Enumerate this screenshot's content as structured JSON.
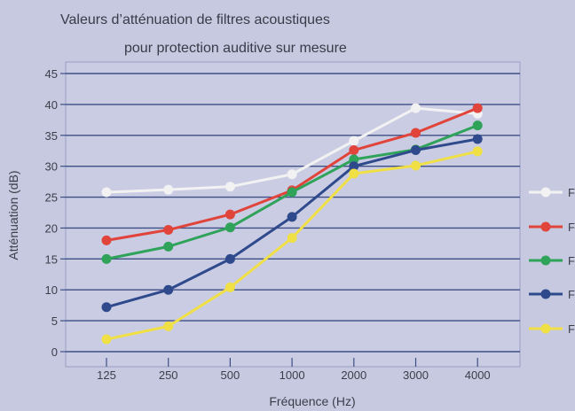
{
  "chart_data": {
    "type": "line",
    "title": "Valeurs d’atténuation de filtres acoustiques",
    "subtitle": "pour protection auditive sur mesure",
    "xlabel": "Fréquence (Hz)",
    "ylabel": "Atténuation (dB)",
    "categories": [
      "125",
      "250",
      "500",
      "1000",
      "2000",
      "3000",
      "4000"
    ],
    "ylim": [
      0,
      45
    ],
    "yticks": [
      "0",
      "5",
      "10",
      "15",
      "20",
      "25",
      "30",
      "35",
      "40",
      "45"
    ],
    "grid": true,
    "legend_position": "right",
    "series": [
      {
        "label": "F",
        "color": "#f2f2f2",
        "values": [
          25.8,
          26.2,
          26.7,
          28.7,
          34.1,
          39.4,
          38.5
        ]
      },
      {
        "label": "F",
        "color": "#e0443a",
        "values": [
          18.0,
          19.7,
          22.2,
          26.1,
          32.6,
          35.4,
          39.4
        ]
      },
      {
        "label": "F",
        "color": "#2fa35a",
        "values": [
          15.0,
          17.0,
          20.1,
          25.8,
          31.1,
          32.7,
          36.6
        ]
      },
      {
        "label": "F",
        "color": "#2f4a8c",
        "values": [
          7.2,
          10.0,
          15.0,
          21.8,
          30.0,
          32.6,
          34.4
        ]
      },
      {
        "label": "F",
        "color": "#f0e046",
        "values": [
          2.0,
          4.1,
          10.4,
          18.4,
          28.8,
          30.1,
          32.4
        ]
      }
    ]
  }
}
